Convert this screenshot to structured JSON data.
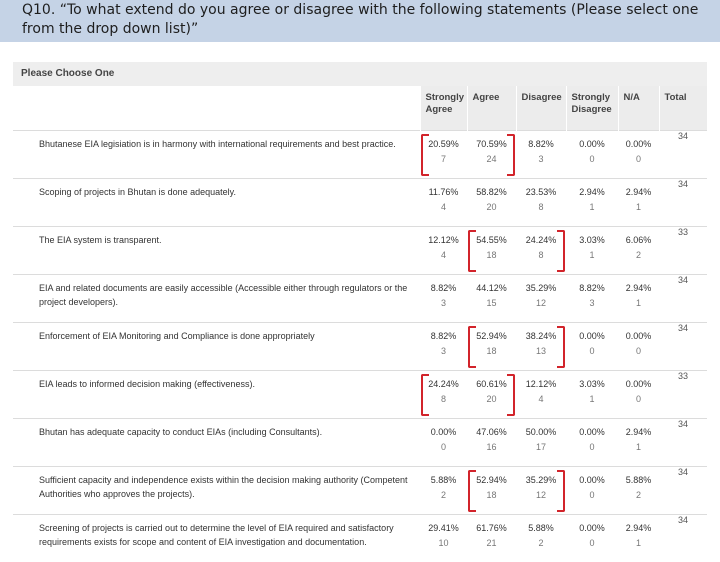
{
  "header": {
    "title": "Q10. “To what extend do you agree or disagree with the following statements (Please select one from the drop down list)”"
  },
  "panel": {
    "title": "Please Choose One",
    "columns": [
      "Strongly Agree",
      "Agree",
      "Disagree",
      "Strongly Disagree",
      "N/A",
      "Total"
    ]
  },
  "rows": [
    {
      "statement": "Bhutanese EIA legisiation is in harmony with international requirements and best practice.",
      "cells": [
        [
          "20.59%",
          "7"
        ],
        [
          "70.59%",
          "24"
        ],
        [
          "8.82%",
          "3"
        ],
        [
          "0.00%",
          "0"
        ],
        [
          "0.00%",
          "0"
        ]
      ],
      "total": "34"
    },
    {
      "statement": "Scoping of projects in Bhutan is done adequately.",
      "cells": [
        [
          "11.76%",
          "4"
        ],
        [
          "58.82%",
          "20"
        ],
        [
          "23.53%",
          "8"
        ],
        [
          "2.94%",
          "1"
        ],
        [
          "2.94%",
          "1"
        ]
      ],
      "total": "34"
    },
    {
      "statement": "The EIA system is transparent.",
      "cells": [
        [
          "12.12%",
          "4"
        ],
        [
          "54.55%",
          "18"
        ],
        [
          "24.24%",
          "8"
        ],
        [
          "3.03%",
          "1"
        ],
        [
          "6.06%",
          "2"
        ]
      ],
      "total": "33"
    },
    {
      "statement": "EIA and related documents are easily accessible (Accessible either through regulators or the project developers).",
      "cells": [
        [
          "8.82%",
          "3"
        ],
        [
          "44.12%",
          "15"
        ],
        [
          "35.29%",
          "12"
        ],
        [
          "8.82%",
          "3"
        ],
        [
          "2.94%",
          "1"
        ]
      ],
      "total": "34"
    },
    {
      "statement": "Enforcement of EIA Monitoring and Compliance is done appropriately",
      "cells": [
        [
          "8.82%",
          "3"
        ],
        [
          "52.94%",
          "18"
        ],
        [
          "38.24%",
          "13"
        ],
        [
          "0.00%",
          "0"
        ],
        [
          "0.00%",
          "0"
        ]
      ],
      "total": "34"
    },
    {
      "statement": "EIA leads to informed decision making (effectiveness).",
      "cells": [
        [
          "24.24%",
          "8"
        ],
        [
          "60.61%",
          "20"
        ],
        [
          "12.12%",
          "4"
        ],
        [
          "3.03%",
          "1"
        ],
        [
          "0.00%",
          "0"
        ]
      ],
      "total": "33"
    },
    {
      "statement": "Bhutan has adequate capacity to conduct EIAs (including Consultants).",
      "cells": [
        [
          "0.00%",
          "0"
        ],
        [
          "47.06%",
          "16"
        ],
        [
          "50.00%",
          "17"
        ],
        [
          "0.00%",
          "0"
        ],
        [
          "2.94%",
          "1"
        ]
      ],
      "total": "34"
    },
    {
      "statement": "Sufficient capacity and independence exists within the decision making authority (Competent Authorities who approves the projects).",
      "cells": [
        [
          "5.88%",
          "2"
        ],
        [
          "52.94%",
          "18"
        ],
        [
          "35.29%",
          "12"
        ],
        [
          "0.00%",
          "0"
        ],
        [
          "5.88%",
          "2"
        ]
      ],
      "total": "34"
    },
    {
      "statement": "Screening of projects is carried out to determine the level of EIA required and satisfactory requirements exists for scope and content of EIA investigation and documentation.",
      "cells": [
        [
          "29.41%",
          "10"
        ],
        [
          "61.76%",
          "21"
        ],
        [
          "5.88%",
          "2"
        ],
        [
          "0.00%",
          "0"
        ],
        [
          "2.94%",
          "1"
        ]
      ],
      "total": "34"
    }
  ],
  "highlights": [
    {
      "row": 0,
      "from": 0,
      "to": 1
    },
    {
      "row": 2,
      "from": 1,
      "to": 2
    },
    {
      "row": 4,
      "from": 1,
      "to": 2
    },
    {
      "row": 5,
      "from": 0,
      "to": 1
    },
    {
      "row": 7,
      "from": 1,
      "to": 2
    }
  ],
  "colors": {
    "header_bg": "#c5d3e6",
    "highlight_bg": "#fbefe8",
    "bracket": "#d2242b"
  }
}
